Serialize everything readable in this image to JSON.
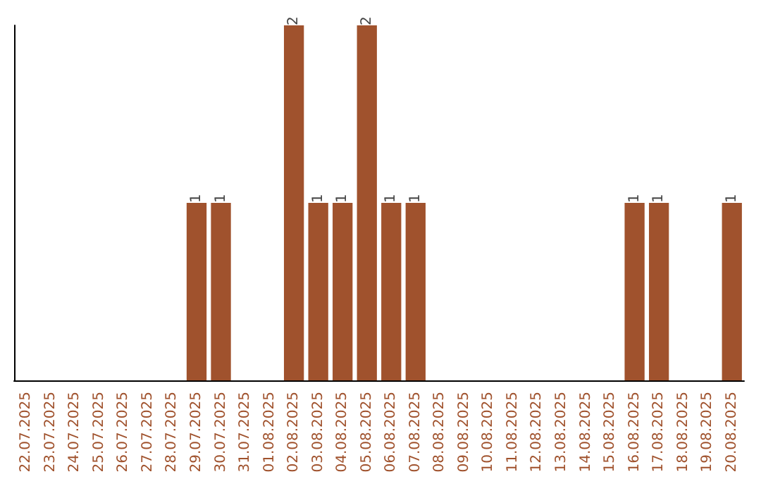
{
  "chart_data": {
    "type": "bar",
    "categories": [
      "22.07.2025",
      "23.07.2025",
      "24.07.2025",
      "25.07.2025",
      "26.07.2025",
      "27.07.2025",
      "28.07.2025",
      "29.07.2025",
      "30.07.2025",
      "31.07.2025",
      "01.08.2025",
      "02.08.2025",
      "03.08.2025",
      "04.08.2025",
      "05.08.2025",
      "06.08.2025",
      "07.08.2025",
      "08.08.2025",
      "09.08.2025",
      "10.08.2025",
      "11.08.2025",
      "12.08.2025",
      "13.08.2025",
      "14.08.2025",
      "15.08.2025",
      "16.08.2025",
      "17.08.2025",
      "18.08.2025",
      "19.08.2025",
      "20.08.2025"
    ],
    "values": [
      0,
      0,
      0,
      0,
      0,
      0,
      0,
      1,
      1,
      0,
      0,
      2,
      1,
      1,
      2,
      1,
      1,
      0,
      0,
      0,
      0,
      0,
      0,
      0,
      0,
      1,
      1,
      0,
      0,
      1
    ],
    "value_labels": [
      null,
      null,
      null,
      null,
      null,
      null,
      null,
      "1",
      "1",
      null,
      null,
      "2",
      "1",
      "1",
      "2",
      "1",
      "1",
      null,
      null,
      null,
      null,
      null,
      null,
      null,
      null,
      "1",
      "1",
      null,
      null,
      "1"
    ],
    "color": "#a0522d",
    "tick_labels": "x",
    "grid": false
  }
}
